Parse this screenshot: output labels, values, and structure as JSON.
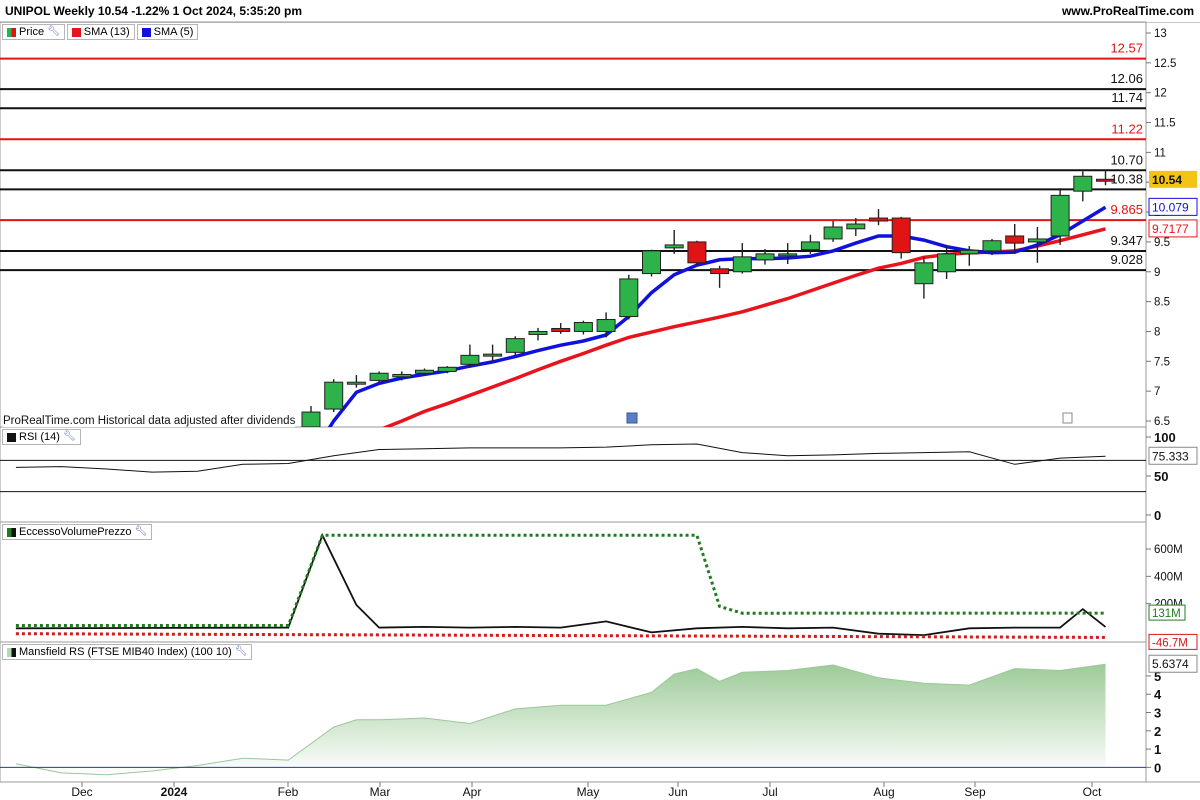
{
  "header": {
    "title": "UNIPOL Weekly 10.54 -1.22% 1 Oct 2024, 5:35:20 pm",
    "website": "www.ProRealTime.com"
  },
  "legends": {
    "price": "Price",
    "sma13": "SMA (13)",
    "sma5": "SMA (5)",
    "rsi": "RSI (14)",
    "evp": "EccessoVolumePrezzo",
    "mrs": "Mansfield RS (FTSE MIB40 Index) (100 10)"
  },
  "notes": {
    "attribution": "ProRealTime.com  Historical data adjusted after dividends"
  },
  "colors": {
    "up": "#2db34a",
    "down": "#e01414",
    "sma13": "#e8131b",
    "sma5": "#1111dd",
    "evp_dotted_green": "#1f7d1f",
    "evp_dotted_red": "#d41a1a",
    "mansfield_fill": "#b5d7b2",
    "current_price_bg": "#f3c316"
  },
  "chart_data": [
    {
      "type": "candlestick",
      "name": "price",
      "timeframe": "weekly",
      "x_labels": [
        "Dec",
        "2024",
        "Feb",
        "Mar",
        "Apr",
        "May",
        "Jun",
        "Jul",
        "Aug",
        "Sep",
        "Oct"
      ],
      "ylim": [
        6.3,
        13.2
      ],
      "y_ticks": [
        6.5,
        7,
        7.5,
        8,
        8.5,
        9,
        9.5,
        10,
        10.5,
        11,
        11.5,
        12,
        12.5,
        13
      ],
      "candles": [
        {
          "o": 6.4,
          "h": 6.75,
          "l": 6.3,
          "c": 6.65
        },
        {
          "o": 6.7,
          "h": 7.2,
          "l": 6.65,
          "c": 7.15
        },
        {
          "o": 7.12,
          "h": 7.27,
          "l": 7.06,
          "c": 7.15
        },
        {
          "o": 7.18,
          "h": 7.33,
          "l": 7.13,
          "c": 7.3
        },
        {
          "o": 7.24,
          "h": 7.33,
          "l": 7.18,
          "c": 7.28
        },
        {
          "o": 7.3,
          "h": 7.38,
          "l": 7.26,
          "c": 7.35
        },
        {
          "o": 7.33,
          "h": 7.42,
          "l": 7.3,
          "c": 7.4
        },
        {
          "o": 7.45,
          "h": 7.78,
          "l": 7.4,
          "c": 7.6
        },
        {
          "o": 7.6,
          "h": 7.78,
          "l": 7.5,
          "c": 7.62
        },
        {
          "o": 7.65,
          "h": 7.92,
          "l": 7.6,
          "c": 7.88
        },
        {
          "o": 7.95,
          "h": 8.06,
          "l": 7.85,
          "c": 8.0
        },
        {
          "o": 8.05,
          "h": 8.14,
          "l": 7.96,
          "c": 8.0
        },
        {
          "o": 8.0,
          "h": 8.18,
          "l": 7.95,
          "c": 8.15
        },
        {
          "o": 8.0,
          "h": 8.32,
          "l": 7.9,
          "c": 8.2
        },
        {
          "o": 8.25,
          "h": 8.95,
          "l": 8.2,
          "c": 8.88
        },
        {
          "o": 8.97,
          "h": 9.37,
          "l": 8.92,
          "c": 9.35
        },
        {
          "o": 9.4,
          "h": 9.7,
          "l": 9.3,
          "c": 9.45
        },
        {
          "o": 9.5,
          "h": 9.52,
          "l": 9.1,
          "c": 9.15
        },
        {
          "o": 9.05,
          "h": 9.1,
          "l": 8.73,
          "c": 8.97
        },
        {
          "o": 9.0,
          "h": 9.48,
          "l": 8.97,
          "c": 9.25
        },
        {
          "o": 9.2,
          "h": 9.38,
          "l": 9.12,
          "c": 9.3
        },
        {
          "o": 9.3,
          "h": 9.48,
          "l": 9.13,
          "c": 9.3
        },
        {
          "o": 9.37,
          "h": 9.62,
          "l": 9.3,
          "c": 9.5
        },
        {
          "o": 9.55,
          "h": 9.85,
          "l": 9.5,
          "c": 9.75
        },
        {
          "o": 9.72,
          "h": 9.9,
          "l": 9.6,
          "c": 9.8
        },
        {
          "o": 9.9,
          "h": 10.05,
          "l": 9.78,
          "c": 9.85
        },
        {
          "o": 9.9,
          "h": 9.92,
          "l": 9.22,
          "c": 9.32
        },
        {
          "o": 8.8,
          "h": 9.25,
          "l": 8.55,
          "c": 9.15
        },
        {
          "o": 9.0,
          "h": 9.45,
          "l": 8.88,
          "c": 9.3
        },
        {
          "o": 9.3,
          "h": 9.43,
          "l": 9.1,
          "c": 9.36
        },
        {
          "o": 9.35,
          "h": 9.55,
          "l": 9.28,
          "c": 9.52
        },
        {
          "o": 9.6,
          "h": 9.8,
          "l": 9.3,
          "c": 9.48
        },
        {
          "o": 9.5,
          "h": 9.75,
          "l": 9.15,
          "c": 9.55
        },
        {
          "o": 9.6,
          "h": 10.4,
          "l": 9.45,
          "c": 10.28
        },
        {
          "o": 10.35,
          "h": 10.68,
          "l": 10.18,
          "c": 10.6
        },
        {
          "o": 10.55,
          "h": 10.7,
          "l": 10.45,
          "c": 10.54
        }
      ],
      "sma13": [
        5.6,
        5.75,
        5.9,
        6.05,
        6.2,
        6.35,
        6.5,
        6.66,
        6.79,
        6.93,
        7.07,
        7.21,
        7.36,
        7.5,
        7.63,
        7.77,
        7.9,
        7.99,
        8.08,
        8.16,
        8.24,
        8.33,
        8.44,
        8.55,
        8.68,
        8.81,
        8.94,
        9.06,
        9.14,
        9.24,
        9.29,
        9.32,
        9.33,
        9.35,
        9.43,
        9.52,
        9.62,
        9.72
      ],
      "sma5": [
        5.9,
        6.5,
        6.98,
        7.13,
        7.22,
        7.28,
        7.34,
        7.42,
        7.49,
        7.58,
        7.68,
        7.77,
        7.84,
        7.94,
        8.25,
        8.65,
        8.95,
        9.11,
        9.2,
        9.22,
        9.22,
        9.23,
        9.26,
        9.35,
        9.48,
        9.6,
        9.6,
        9.53,
        9.42,
        9.35,
        9.32,
        9.33,
        9.45,
        9.62,
        9.85,
        10.08
      ],
      "sma13_start_index": -2,
      "horizontal_levels": [
        {
          "value": 12.57,
          "label": "12.57",
          "color": "red"
        },
        {
          "value": 12.06,
          "label": "12.06",
          "color": "black"
        },
        {
          "value": 11.74,
          "label": "11.74",
          "color": "black"
        },
        {
          "value": 11.22,
          "label": "11.22",
          "color": "red"
        },
        {
          "value": 10.7,
          "label": "10.70",
          "color": "black"
        },
        {
          "value": 10.38,
          "label": "10.38",
          "color": "black"
        },
        {
          "value": 9.865,
          "label": "9.865",
          "color": "red"
        },
        {
          "value": 9.347,
          "label": "9.347",
          "color": "black"
        },
        {
          "value": 9.028,
          "label": "9.028",
          "color": "black"
        }
      ],
      "last_values": {
        "price": "10.54",
        "sma5": "10.079",
        "sma13": "9.7177"
      }
    },
    {
      "type": "line",
      "name": "RSI (14)",
      "ylim": [
        0,
        100
      ],
      "y_ticks": [
        0,
        50,
        100
      ],
      "reference_levels": [
        70,
        30
      ],
      "x": [
        -13,
        -11,
        -9,
        -7,
        -5,
        -3,
        -1,
        1,
        3,
        5,
        7,
        9,
        11,
        13,
        15,
        17,
        19,
        21,
        23,
        25,
        27,
        29,
        31,
        33,
        35
      ],
      "values": [
        61,
        62,
        59,
        55,
        56,
        65,
        66,
        76,
        84,
        85,
        86,
        86,
        86,
        87,
        90,
        91,
        80,
        76,
        77,
        79,
        80,
        81,
        65,
        73,
        75.3
      ],
      "last_value": "75.333"
    },
    {
      "type": "line",
      "name": "EccessoVolumePrezzo",
      "y_ticks_labels": [
        "600M",
        "400M",
        "200M"
      ],
      "y_ticks": [
        600,
        400,
        200
      ],
      "series": [
        {
          "style": "solid",
          "x": [
            -13,
            -1,
            0.5,
            2,
            3,
            5,
            7,
            9,
            11,
            13,
            15,
            17,
            19,
            21,
            23,
            25,
            27,
            29,
            31,
            33,
            34,
            35
          ],
          "values": [
            20,
            25,
            700,
            190,
            25,
            30,
            25,
            30,
            25,
            70,
            -10,
            20,
            30,
            20,
            25,
            -20,
            -30,
            20,
            25,
            25,
            160,
            30
          ]
        },
        {
          "style": "dotted-green",
          "x": [
            -13,
            -1,
            0.5,
            17,
            18,
            19,
            35
          ],
          "values": [
            40,
            40,
            700,
            700,
            180,
            130,
            131
          ]
        },
        {
          "style": "dotted-red",
          "x": [
            -13,
            35
          ],
          "values": [
            -20,
            -46.7
          ]
        }
      ],
      "last_values": [
        "131M",
        "-46.7M"
      ]
    },
    {
      "type": "area",
      "name": "Mansfield RS (FTSE MIB40 Index) (100 10)",
      "ylim": [
        -0.8,
        6.2
      ],
      "y_ticks": [
        0,
        1,
        2,
        3,
        4,
        5
      ],
      "x": [
        -13,
        -11,
        -9,
        -7,
        -5,
        -3,
        -1,
        1,
        2,
        3,
        5,
        7,
        9,
        11,
        13,
        15,
        16,
        17,
        18,
        19,
        21,
        23,
        25,
        27,
        29,
        31,
        33,
        35
      ],
      "values": [
        0.2,
        -0.3,
        -0.4,
        -0.2,
        0.1,
        0.5,
        0.4,
        2.2,
        2.6,
        2.6,
        2.7,
        2.4,
        3.2,
        3.4,
        3.4,
        4.1,
        5.1,
        5.4,
        4.7,
        5.2,
        5.3,
        5.6,
        4.9,
        4.6,
        4.5,
        5.4,
        5.3,
        5.64
      ],
      "last_value": "5.6374"
    }
  ]
}
